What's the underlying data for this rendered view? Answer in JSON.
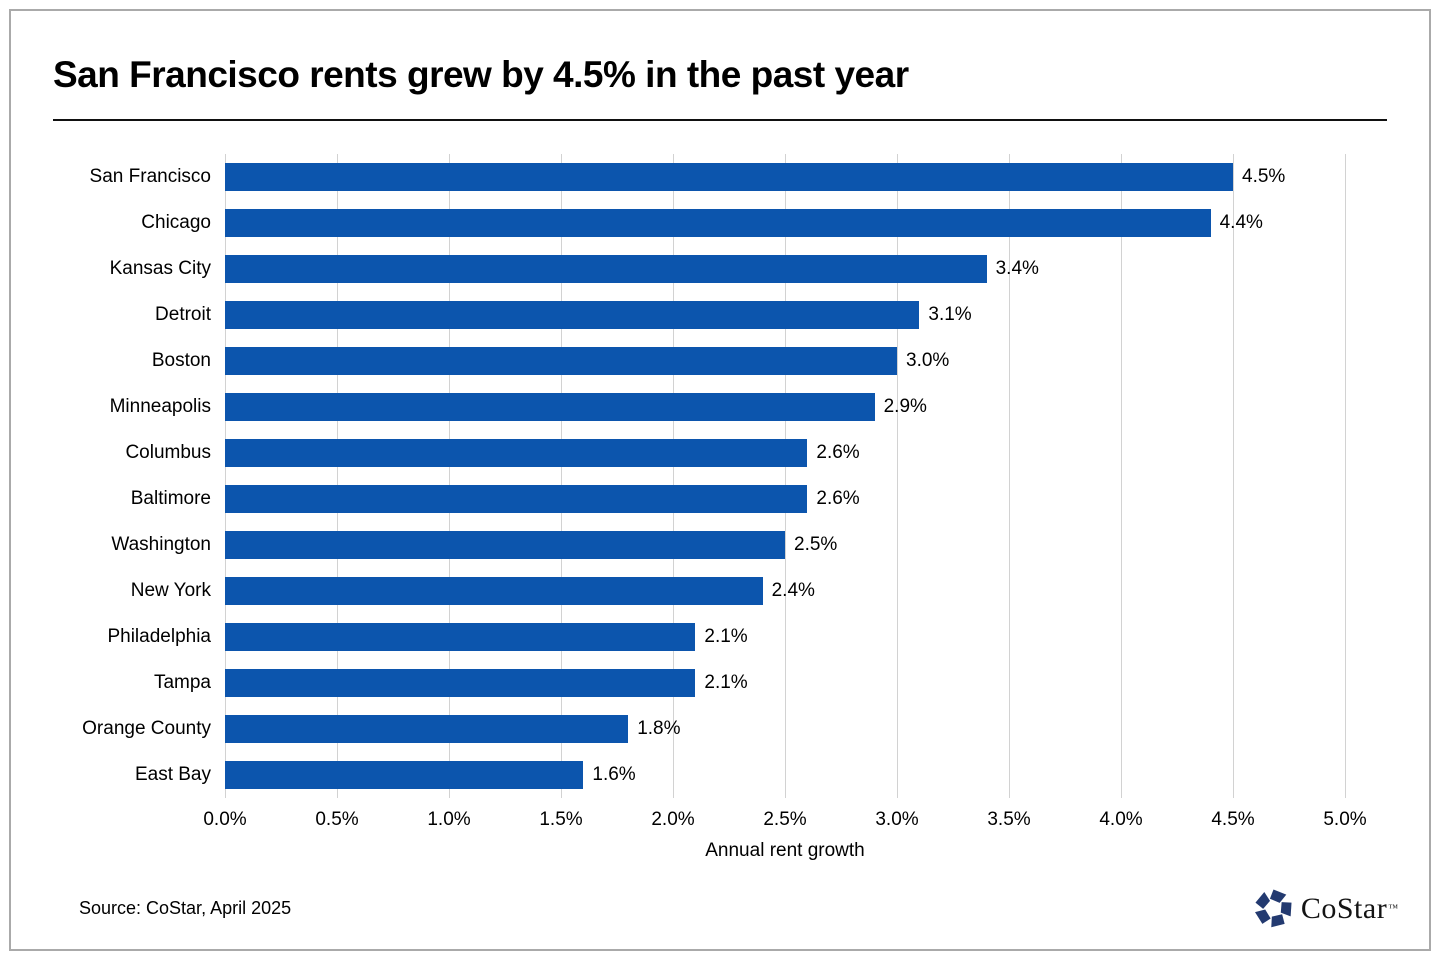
{
  "title": "San Francisco rents grew by 4.5% in the past year",
  "chart_data": {
    "type": "bar",
    "orientation": "horizontal",
    "title": "San Francisco rents grew by 4.5% in the past year",
    "categories": [
      "San Francisco",
      "Chicago",
      "Kansas City",
      "Detroit",
      "Boston",
      "Minneapolis",
      "Columbus",
      "Baltimore",
      "Washington",
      "New York",
      "Philadelphia",
      "Tampa",
      "Orange County",
      "East Bay"
    ],
    "values": [
      4.5,
      4.4,
      3.4,
      3.1,
      3.0,
      2.9,
      2.6,
      2.6,
      2.5,
      2.4,
      2.1,
      2.1,
      1.8,
      1.6
    ],
    "value_labels": [
      "4.5%",
      "4.4%",
      "3.4%",
      "3.1%",
      "3.0%",
      "2.9%",
      "2.6%",
      "2.6%",
      "2.5%",
      "2.4%",
      "2.1%",
      "2.1%",
      "1.8%",
      "1.6%"
    ],
    "xlabel": "Annual rent growth",
    "ylabel": "",
    "x_ticks": [
      "0.0%",
      "0.5%",
      "1.0%",
      "1.5%",
      "2.0%",
      "2.5%",
      "3.0%",
      "3.5%",
      "4.0%",
      "4.5%",
      "5.0%"
    ],
    "xlim": [
      0,
      5
    ],
    "grid": true,
    "legend": false
  },
  "source": "Source: CoStar, April 2025",
  "logo": {
    "text": "CoStar",
    "tm": "™",
    "icon": "costar-pinwheel-icon"
  },
  "colors": {
    "bar": "#0c55ad",
    "gridline": "#d2d2d2",
    "frame_border": "#aaaaaa",
    "logo_navy": "#233a70",
    "text": "#000000",
    "background": "#ffffff"
  }
}
